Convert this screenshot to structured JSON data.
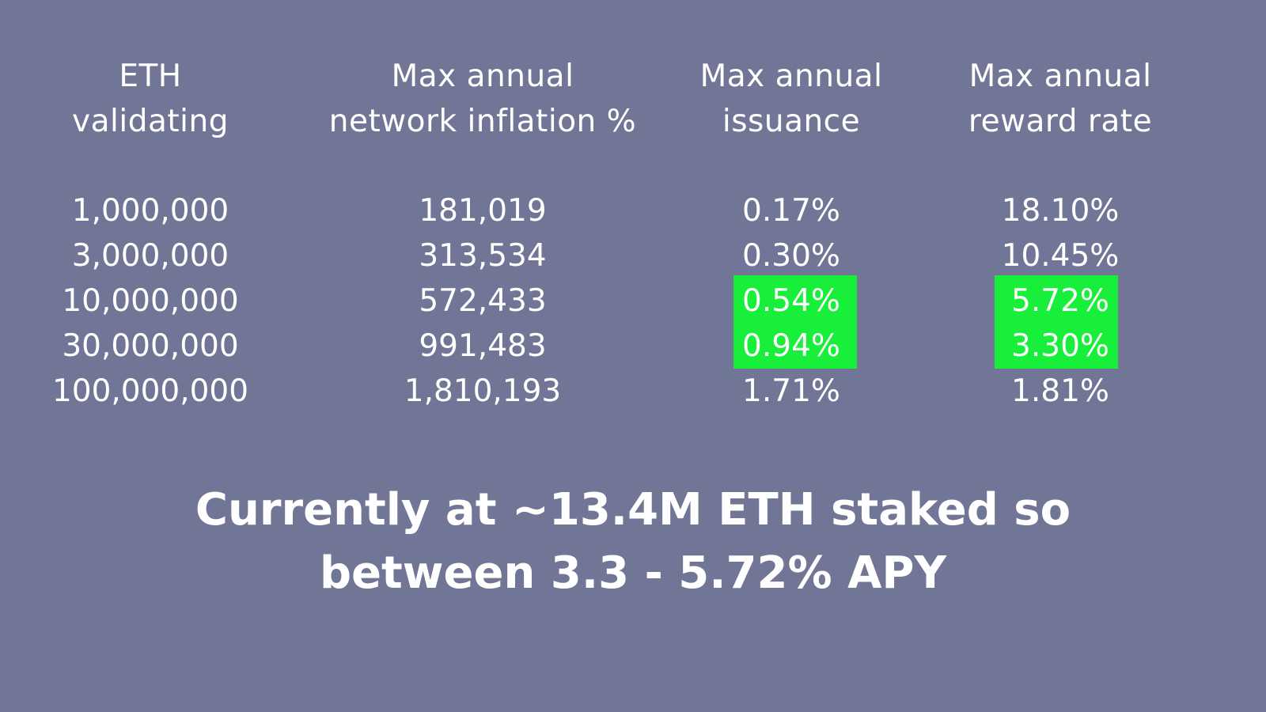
{
  "table": {
    "headers": [
      [
        "ETH",
        "validating"
      ],
      [
        "Max annual",
        "network inflation %"
      ],
      [
        "Max annual",
        "issuance"
      ],
      [
        "Max annual",
        "reward rate"
      ]
    ],
    "rows": [
      [
        "1,000,000",
        "181,019",
        "0.17%",
        "18.10%"
      ],
      [
        "3,000,000",
        "313,534",
        "0.30%",
        "10.45%"
      ],
      [
        "10,000,000",
        "572,433",
        "0.54%",
        "5.72%"
      ],
      [
        "30,000,000",
        "991,483",
        "0.94%",
        "3.30%"
      ],
      [
        "100,000,000",
        "1,810,193",
        "1.71%",
        "1.81%"
      ]
    ],
    "highlight_color": "#18ef3a",
    "background_color": "#717596"
  },
  "footer": {
    "line1": "Currently at ~13.4M ETH staked so",
    "line2": "between 3.3 - 5.72% APY"
  }
}
